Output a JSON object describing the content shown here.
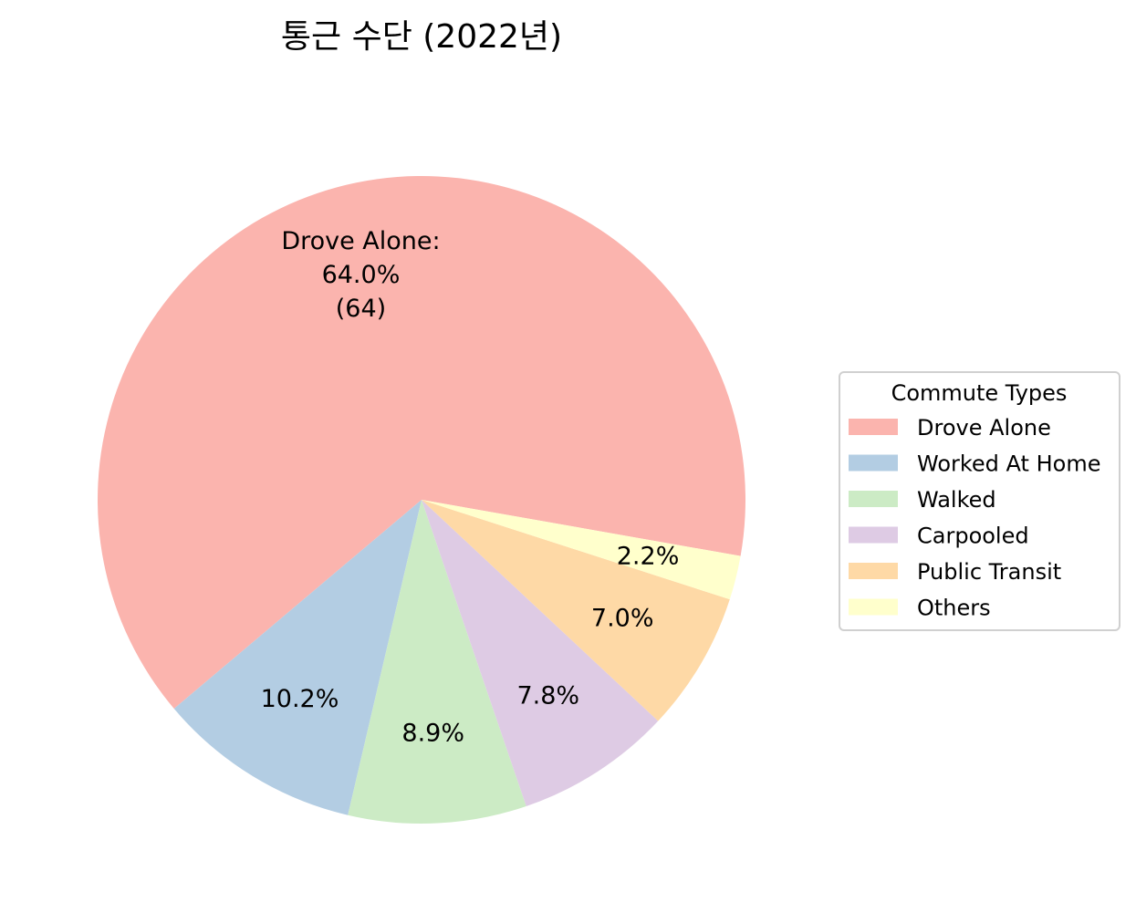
{
  "chart_data": {
    "type": "pie",
    "title": "통근 수단 (2022년)",
    "categories": [
      "Drove Alone",
      "Worked At Home",
      "Walked",
      "Carpooled",
      "Public Transit",
      "Others"
    ],
    "values": [
      64,
      10.2,
      8.9,
      7.8,
      7.0,
      2.2
    ],
    "percent_labels": [
      "64.0%",
      "10.2%",
      "8.9%",
      "7.8%",
      "7.0%",
      "2.2%"
    ],
    "colors": [
      "#fbb4ae",
      "#b3cde3",
      "#ccebc5",
      "#decbe4",
      "#fed9a6",
      "#ffffcc"
    ],
    "highlight_label": {
      "name": "Drove Alone:",
      "percent": "64.0%",
      "count": "(64)"
    },
    "legend": {
      "title": "Commute Types",
      "position": "center-right"
    }
  }
}
